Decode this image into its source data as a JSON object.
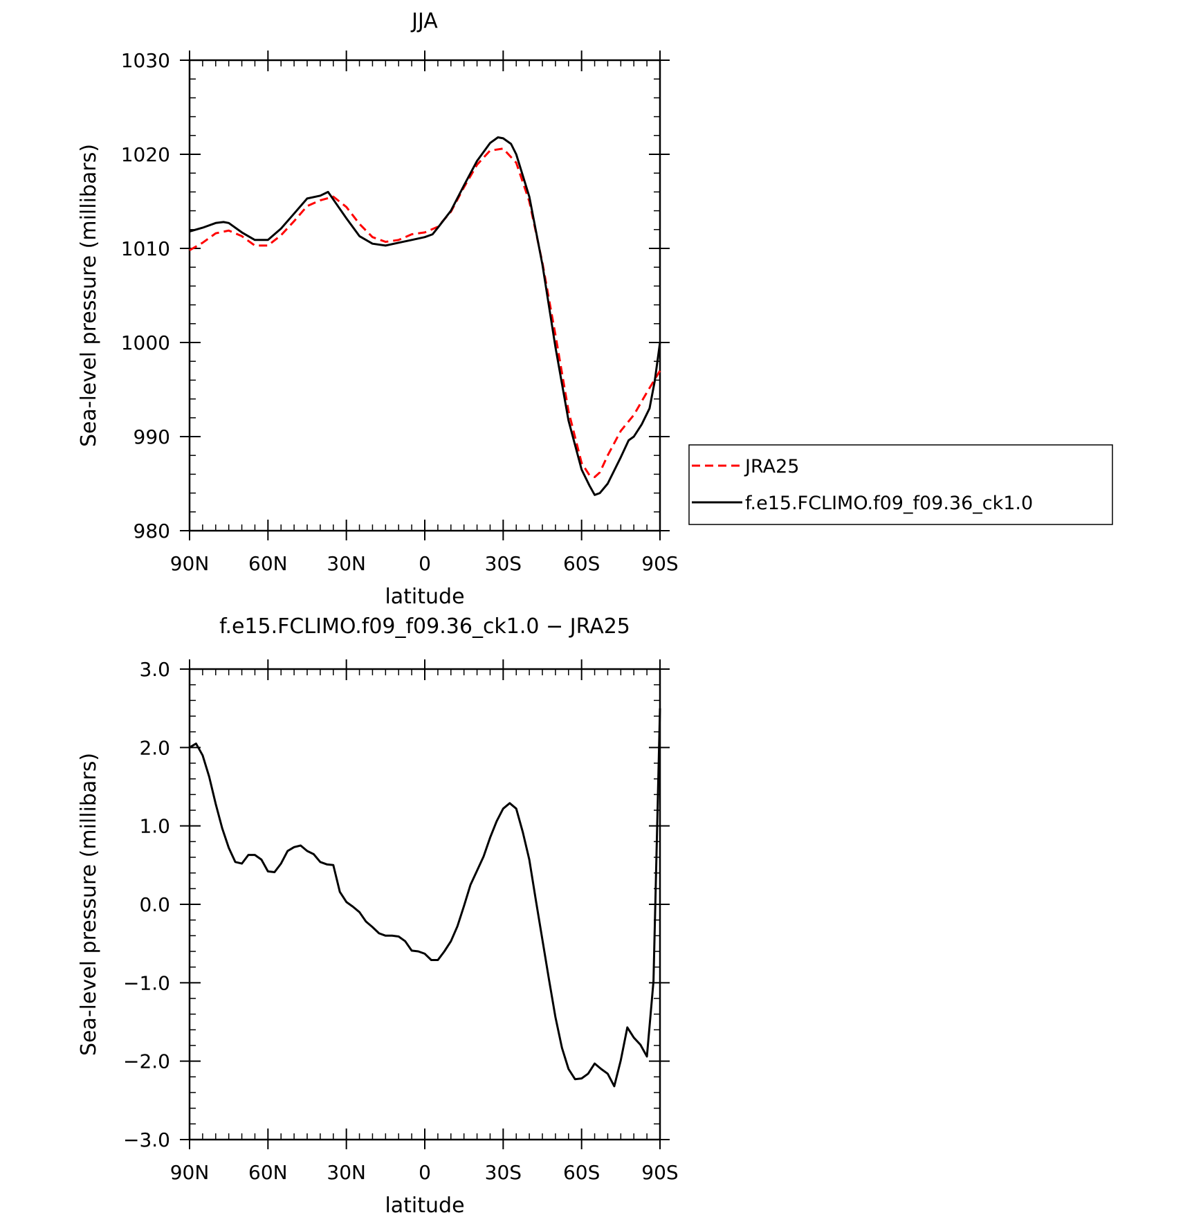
{
  "colors": {
    "observation": "#ff0000",
    "model": "#000000",
    "axes": "#000000",
    "background": "#ffffff"
  },
  "chart_data": [
    {
      "type": "line",
      "title": "JJA",
      "xlabel": "latitude",
      "ylabel": "Sea-level pressure (millibars)",
      "xlim": [
        90,
        -90
      ],
      "ylim": [
        980,
        1030
      ],
      "xticks": [
        90,
        60,
        30,
        0,
        -30,
        -60,
        -90
      ],
      "xtick_labels": [
        "90N",
        "60N",
        "30N",
        "0",
        "30S",
        "60S",
        "90S"
      ],
      "yticks": [
        980,
        990,
        1000,
        1010,
        1020,
        1030
      ],
      "ytick_labels": [
        "980",
        "990",
        "1000",
        "1010",
        "1020",
        "1030"
      ],
      "grid": false,
      "legend": {
        "placement": "outside-right",
        "entries": [
          "JRA25",
          "f.e15.FCLIMO.f09_f09.36_ck1.0"
        ]
      },
      "series": [
        {
          "name": "JRA25",
          "style": "dashed",
          "color": "#ff0000",
          "x": [
            90,
            85,
            80,
            75,
            70,
            65,
            60,
            55,
            50,
            45,
            40,
            35,
            30,
            25,
            20,
            15,
            10,
            5,
            0,
            -5,
            -10,
            -15,
            -20,
            -25,
            -30,
            -35,
            -40,
            -45,
            -50,
            -55,
            -60,
            -63,
            -65,
            -67,
            -70,
            -75,
            -80,
            -85,
            -90
          ],
          "y": [
            1009.8,
            1010.6,
            1011.6,
            1011.9,
            1011.3,
            1010.3,
            1010.3,
            1011.4,
            1012.9,
            1014.5,
            1015.1,
            1015.5,
            1014.4,
            1012.6,
            1011.2,
            1010.7,
            1010.9,
            1011.5,
            1011.7,
            1012.3,
            1013.9,
            1016.5,
            1018.9,
            1020.4,
            1020.6,
            1019.1,
            1015.0,
            1008.5,
            1000.8,
            992.7,
            987.2,
            985.9,
            985.7,
            986.2,
            988.0,
            990.6,
            992.3,
            994.7,
            997.0
          ]
        },
        {
          "name": "f.e15.FCLIMO.f09_f09.36_ck1.0",
          "style": "solid",
          "color": "#000000",
          "x": [
            90,
            85,
            80,
            77,
            75,
            70,
            65,
            60,
            55,
            50,
            45,
            40,
            37,
            35,
            30,
            25,
            20,
            15,
            10,
            5,
            0,
            -3,
            -5,
            -10,
            -15,
            -20,
            -25,
            -28,
            -30,
            -33,
            -35,
            -40,
            -45,
            -50,
            -55,
            -60,
            -63,
            -65,
            -67,
            -70,
            -75,
            -78,
            -80,
            -83,
            -86,
            -88,
            -90
          ],
          "y": [
            1011.8,
            1012.2,
            1012.7,
            1012.8,
            1012.7,
            1011.7,
            1010.9,
            1010.9,
            1012.1,
            1013.7,
            1015.3,
            1015.6,
            1016.0,
            1015.2,
            1013.2,
            1011.3,
            1010.5,
            1010.3,
            1010.6,
            1010.9,
            1011.2,
            1011.5,
            1012.2,
            1014.0,
            1016.7,
            1019.3,
            1021.2,
            1021.8,
            1021.7,
            1021.1,
            1020.0,
            1015.5,
            1008.3,
            999.5,
            991.7,
            986.5,
            984.8,
            983.8,
            984.0,
            985.0,
            987.8,
            989.6,
            990.0,
            991.3,
            993.0,
            995.9,
            1000.0
          ]
        }
      ]
    },
    {
      "type": "line",
      "title": "f.e15.FCLIMO.f09_f09.36_ck1.0 − JRA25",
      "xlabel": "latitude",
      "ylabel": "Sea-level pressure (millibars)",
      "xlim": [
        90,
        -90
      ],
      "ylim": [
        -3.0,
        3.0
      ],
      "xticks": [
        90,
        60,
        30,
        0,
        -30,
        -60,
        -90
      ],
      "xtick_labels": [
        "90N",
        "60N",
        "30N",
        "0",
        "30S",
        "60S",
        "90S"
      ],
      "yticks": [
        -3.0,
        -2.0,
        -1.0,
        0.0,
        1.0,
        2.0,
        3.0
      ],
      "ytick_labels": [
        "−3.0",
        "−2.0",
        "−1.0",
        "0.0",
        "1.0",
        "2.0",
        "3.0"
      ],
      "grid": false,
      "series": [
        {
          "style": "solid",
          "color": "#000000",
          "x": [
            90,
            87.5,
            85,
            82.5,
            80,
            77.5,
            75,
            72.5,
            70,
            67.5,
            65,
            62.5,
            60,
            57.5,
            55,
            52.5,
            50,
            47.5,
            45,
            42.5,
            40,
            37.5,
            35,
            32.5,
            30,
            27.5,
            25,
            22.5,
            20,
            17.5,
            15,
            12.5,
            10,
            7.5,
            5,
            2.5,
            0,
            -2.5,
            -5,
            -7.5,
            -10,
            -12.5,
            -15,
            -17.5,
            -20,
            -22.5,
            -25,
            -27.5,
            -30,
            -32.5,
            -35,
            -37.5,
            -40,
            -42.5,
            -45,
            -47.5,
            -50,
            -52.5,
            -55,
            -57.5,
            -60,
            -62.5,
            -65,
            -67.5,
            -70,
            -72.5,
            -75,
            -77.5,
            -80,
            -82.5,
            -85,
            -87.5,
            -90
          ],
          "y": [
            2.0,
            2.05,
            1.9,
            1.63,
            1.28,
            0.97,
            0.72,
            0.54,
            0.52,
            0.63,
            0.63,
            0.57,
            0.42,
            0.41,
            0.52,
            0.68,
            0.73,
            0.75,
            0.68,
            0.64,
            0.54,
            0.51,
            0.5,
            0.16,
            0.03,
            -0.03,
            -0.1,
            -0.22,
            -0.29,
            -0.37,
            -0.4,
            -0.4,
            -0.41,
            -0.47,
            -0.59,
            -0.6,
            -0.63,
            -0.71,
            -0.71,
            -0.6,
            -0.47,
            -0.28,
            -0.02,
            0.25,
            0.43,
            0.61,
            0.85,
            1.06,
            1.22,
            1.29,
            1.22,
            0.92,
            0.57,
            0.05,
            -0.45,
            -0.95,
            -1.44,
            -1.83,
            -2.1,
            -2.23,
            -2.22,
            -2.16,
            -2.03,
            -2.1,
            -2.16,
            -2.32,
            -1.99,
            -1.57,
            -1.7,
            -1.79,
            -1.94,
            -0.98,
            2.5
          ]
        }
      ]
    }
  ]
}
